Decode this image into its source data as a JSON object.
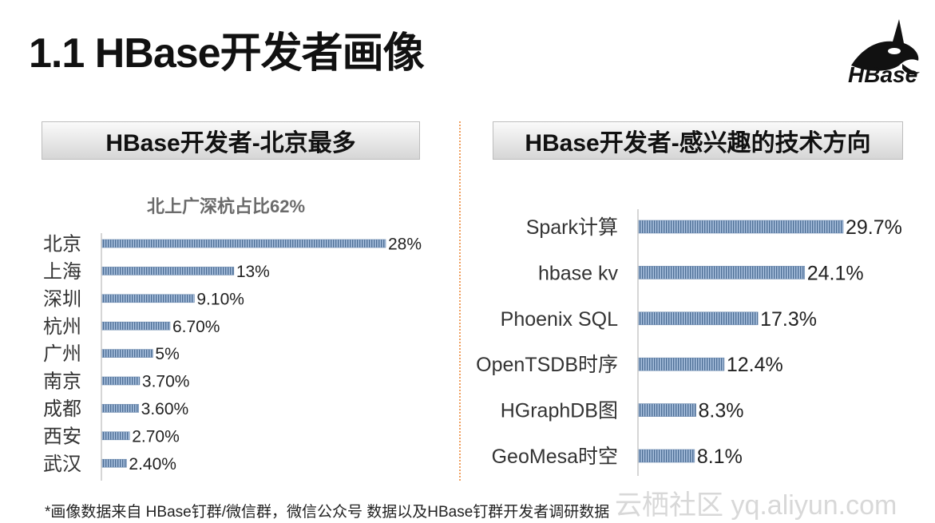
{
  "slide": {
    "title": "1.1 HBase开发者画像",
    "logo_text": "HBase",
    "footnote": "*画像数据来自 HBase钉群/微信群，微信公众号 数据以及HBase钉群开发者调研数据",
    "watermark": "云栖社区 yq.aliyun.com"
  },
  "left_panel": {
    "header": "HBase开发者-北京最多"
  },
  "right_panel": {
    "header": "HBase开发者-感兴趣的技术方向"
  },
  "colors": {
    "bar": "#7f9fc4",
    "bar_dark": "#4e6f96",
    "divider": "#f0a060"
  },
  "chart_data": [
    {
      "type": "bar",
      "orientation": "horizontal",
      "title": "北上广深杭占比62%",
      "categories": [
        "北京",
        "上海",
        "深圳",
        "杭州",
        "广州",
        "南京",
        "成都",
        "西安",
        "武汉"
      ],
      "values": [
        28,
        13,
        9.1,
        6.7,
        5,
        3.7,
        3.6,
        2.7,
        2.4
      ],
      "labels": [
        "28%",
        "13%",
        "9.10%",
        "6.70%",
        "5%",
        "3.70%",
        "3.60%",
        "2.70%",
        "2.40%"
      ],
      "xlim": [
        0,
        28
      ]
    },
    {
      "type": "bar",
      "orientation": "horizontal",
      "title": "",
      "categories": [
        "Spark计算",
        "hbase kv",
        "Phoenix SQL",
        "OpenTSDB时序",
        "HGraphDB图",
        "GeoMesa时空"
      ],
      "values": [
        29.7,
        24.1,
        17.3,
        12.4,
        8.3,
        8.1
      ],
      "labels": [
        "29.7%",
        "24.1%",
        "17.3%",
        "12.4%",
        "8.3%",
        "8.1%"
      ],
      "xlim": [
        0,
        29.7
      ]
    }
  ]
}
